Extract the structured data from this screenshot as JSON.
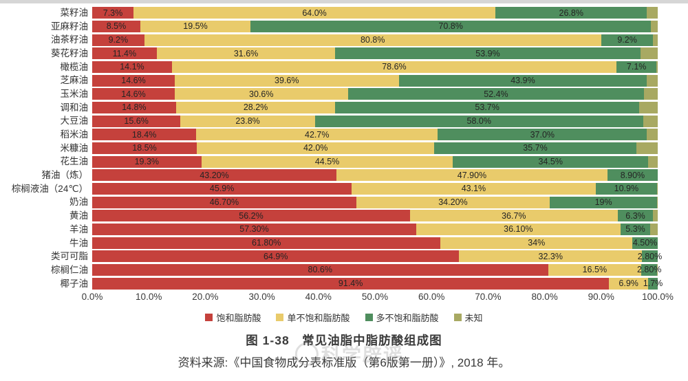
{
  "figure": {
    "title": "图 1-38　常见油脂中脂肪酸组成图",
    "source": "资料来源:《中国食物成分表标准版（第6版第一册）》, 2018 年。",
    "watermark": "科学辟谣"
  },
  "chart_data": {
    "type": "bar",
    "orientation": "horizontal",
    "stacked": true,
    "title": "图 1-38　常见油脂中脂肪酸组成图",
    "xlabel": "",
    "ylabel": "",
    "xlim": [
      0,
      100
    ],
    "x_ticks": [
      "0.0%",
      "10.0%",
      "20.0%",
      "30.0%",
      "40.0%",
      "50.0%",
      "60.0%",
      "70.0%",
      "80.0%",
      "90.0%",
      "100.0%"
    ],
    "legend_position": "bottom",
    "categories": [
      "菜籽油",
      "亚麻籽油",
      "油茶籽油",
      "葵花籽油",
      "橄榄油",
      "芝麻油",
      "玉米油",
      "调和油",
      "大豆油",
      "稻米油",
      "米糠油",
      "花生油",
      "猪油（炼）",
      "棕榈液油（24℃）",
      "奶油",
      "黄油",
      "羊油",
      "牛油",
      "类可可脂",
      "棕榈仁油",
      "椰子油"
    ],
    "series": [
      {
        "key": "saturated",
        "name": "饱和脂肪酸",
        "color": "#c5413c",
        "values": [
          7.3,
          8.5,
          9.2,
          11.4,
          14.1,
          14.6,
          14.6,
          14.8,
          15.6,
          18.4,
          18.5,
          19.3,
          43.2,
          45.9,
          46.7,
          56.2,
          57.3,
          61.8,
          64.9,
          80.6,
          91.4
        ],
        "labels": [
          "7.3%",
          "8.5%",
          "9.2%",
          "11.4%",
          "14.1%",
          "14.6%",
          "14.6%",
          "14.8%",
          "15.6%",
          "18.4%",
          "18.5%",
          "19.3%",
          "43.20%",
          "45.9%",
          "46.70%",
          "56.2%",
          "57.30%",
          "61.80%",
          "64.9%",
          "80.6%",
          "91.4%"
        ]
      },
      {
        "key": "monounsaturated",
        "name": "单不饱和脂肪酸",
        "color": "#e9cb6b",
        "values": [
          64.0,
          19.5,
          80.8,
          31.6,
          78.6,
          39.6,
          30.6,
          28.2,
          23.8,
          42.7,
          42.0,
          44.5,
          47.9,
          43.1,
          34.2,
          36.7,
          36.1,
          34.0,
          32.3,
          16.5,
          6.9
        ],
        "labels": [
          "64.0%",
          "19.5%",
          "80.8%",
          "31.6%",
          "78.6%",
          "39.6%",
          "30.6%",
          "28.2%",
          "23.8%",
          "42.7%",
          "42.0%",
          "44.5%",
          "47.90%",
          "43.1%",
          "34.20%",
          "36.7%",
          "36.10%",
          "34%",
          "32.3%",
          "16.5%",
          "6.9%"
        ]
      },
      {
        "key": "polyunsaturated",
        "name": "多不饱和脂肪酸",
        "color": "#4f8e5e",
        "values": [
          26.8,
          70.8,
          9.2,
          53.9,
          7.1,
          43.9,
          52.4,
          53.7,
          58.0,
          37.0,
          35.7,
          34.5,
          8.9,
          10.9,
          19.0,
          6.3,
          5.3,
          4.5,
          2.8,
          2.8,
          1.7
        ],
        "labels": [
          "26.8%",
          "70.8%",
          "9.2%",
          "53.9%",
          "7.1%",
          "43.9%",
          "52.4%",
          "53.7%",
          "58.0%",
          "37.0%",
          "35.7%",
          "34.5%",
          "8.90%",
          "10.9%",
          "19%",
          "6.3%",
          "5.3%",
          "4.50%",
          "2.80%",
          "2.80%",
          "1.7%"
        ]
      },
      {
        "key": "unknown",
        "name": "未知",
        "color": "#a8a962",
        "values": [
          1.9,
          1.2,
          0.8,
          3.1,
          0.2,
          1.9,
          2.4,
          3.3,
          2.6,
          1.9,
          3.8,
          1.7,
          0.0,
          0.1,
          0.1,
          0.8,
          1.3,
          0.0,
          0.0,
          0.1,
          0.0
        ],
        "labels": [
          "",
          "",
          "",
          "",
          "",
          "",
          "",
          "",
          "",
          "",
          "",
          "",
          "",
          "",
          "",
          "",
          "",
          "",
          "",
          "",
          ""
        ]
      }
    ]
  }
}
